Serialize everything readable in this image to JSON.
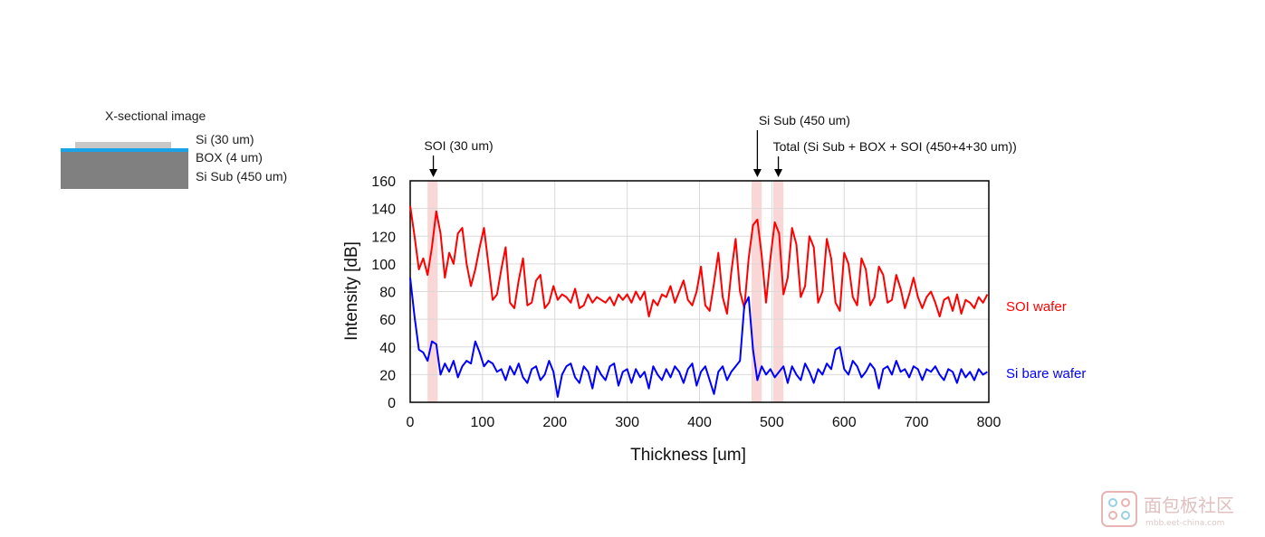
{
  "xsection": {
    "title": "X-sectional image",
    "layers": [
      {
        "label": "Si (30 um)",
        "color": "#c8c8c8"
      },
      {
        "label": "BOX (4 um)",
        "color": "#1aa3e8"
      },
      {
        "label": "Si Sub (450 um)",
        "color": "#808080"
      }
    ]
  },
  "annotations": [
    {
      "label": "SOI (30 um)",
      "x": 32
    },
    {
      "label": "Si Sub (450 um)",
      "x": 480
    },
    {
      "label": "Total (Si Sub + BOX + SOI (450+4+30 um))",
      "x": 509
    }
  ],
  "watermark": {
    "text": "面包板社区",
    "sub": "mbb.eet-china.com"
  },
  "chart_data": {
    "type": "line",
    "xlabel": "Thickness [um]",
    "ylabel": "Intensity [dB]",
    "xlim": [
      0,
      800
    ],
    "ylim": [
      0,
      160
    ],
    "xticks": [
      0,
      100,
      200,
      300,
      400,
      500,
      600,
      700,
      800
    ],
    "yticks": [
      0,
      20,
      40,
      60,
      80,
      100,
      120,
      140,
      160
    ],
    "grid": true,
    "highlight_bands": [
      [
        24,
        38
      ],
      [
        472,
        486
      ],
      [
        502,
        516
      ]
    ],
    "highlight_color": "#f7c9c9",
    "series": [
      {
        "name": "SOI wafer",
        "color": "#ff0000",
        "x": [
          0,
          6,
          12,
          18,
          24,
          30,
          36,
          42,
          48,
          54,
          60,
          66,
          72,
          78,
          84,
          90,
          96,
          102,
          108,
          114,
          120,
          126,
          132,
          138,
          144,
          150,
          156,
          162,
          168,
          174,
          180,
          186,
          192,
          198,
          204,
          210,
          216,
          222,
          228,
          234,
          240,
          246,
          252,
          258,
          264,
          270,
          276,
          282,
          288,
          294,
          300,
          306,
          312,
          318,
          324,
          330,
          336,
          342,
          348,
          354,
          360,
          366,
          372,
          378,
          384,
          390,
          396,
          402,
          408,
          414,
          420,
          426,
          432,
          438,
          444,
          450,
          456,
          462,
          468,
          474,
          480,
          486,
          492,
          498,
          504,
          510,
          516,
          522,
          528,
          534,
          540,
          546,
          552,
          558,
          564,
          570,
          576,
          582,
          588,
          594,
          600,
          606,
          612,
          618,
          624,
          630,
          636,
          642,
          648,
          654,
          660,
          666,
          672,
          678,
          684,
          690,
          696,
          702,
          708,
          714,
          720,
          726,
          732,
          738,
          744,
          750,
          756,
          762,
          768,
          774,
          780,
          786,
          792,
          798
        ],
        "values": [
          142,
          120,
          96,
          104,
          92,
          112,
          138,
          122,
          90,
          108,
          100,
          122,
          126,
          100,
          84,
          96,
          112,
          126,
          100,
          74,
          78,
          96,
          112,
          72,
          68,
          88,
          104,
          70,
          72,
          88,
          92,
          68,
          72,
          84,
          74,
          78,
          76,
          72,
          82,
          68,
          70,
          78,
          72,
          76,
          74,
          72,
          76,
          70,
          78,
          74,
          78,
          72,
          80,
          74,
          80,
          62,
          74,
          70,
          78,
          76,
          84,
          72,
          80,
          88,
          74,
          70,
          80,
          98,
          70,
          66,
          86,
          108,
          76,
          64,
          94,
          118,
          80,
          68,
          104,
          128,
          132,
          106,
          72,
          104,
          130,
          122,
          78,
          90,
          126,
          114,
          76,
          84,
          120,
          112,
          72,
          80,
          118,
          104,
          72,
          66,
          108,
          100,
          76,
          70,
          104,
          96,
          70,
          76,
          98,
          92,
          72,
          74,
          92,
          82,
          68,
          78,
          90,
          76,
          68,
          76,
          80,
          72,
          62,
          74,
          76,
          66,
          78,
          64,
          74,
          72,
          68,
          76,
          72,
          78
        ]
      },
      {
        "name": "Si bare wafer",
        "color": "#0000ff",
        "x": [
          0,
          6,
          12,
          18,
          24,
          30,
          36,
          42,
          48,
          54,
          60,
          66,
          72,
          78,
          84,
          90,
          96,
          102,
          108,
          114,
          120,
          126,
          132,
          138,
          144,
          150,
          156,
          162,
          168,
          174,
          180,
          186,
          192,
          198,
          204,
          210,
          216,
          222,
          228,
          234,
          240,
          246,
          252,
          258,
          264,
          270,
          276,
          282,
          288,
          294,
          300,
          306,
          312,
          318,
          324,
          330,
          336,
          342,
          348,
          354,
          360,
          366,
          372,
          378,
          384,
          390,
          396,
          402,
          408,
          414,
          420,
          426,
          432,
          438,
          444,
          450,
          456,
          462,
          468,
          474,
          480,
          486,
          492,
          498,
          504,
          510,
          516,
          522,
          528,
          534,
          540,
          546,
          552,
          558,
          564,
          570,
          576,
          582,
          588,
          594,
          600,
          606,
          612,
          618,
          624,
          630,
          636,
          642,
          648,
          654,
          660,
          666,
          672,
          678,
          684,
          690,
          696,
          702,
          708,
          714,
          720,
          726,
          732,
          738,
          744,
          750,
          756,
          762,
          768,
          774,
          780,
          786,
          792,
          798
        ],
        "values": [
          90,
          62,
          38,
          36,
          30,
          44,
          42,
          20,
          28,
          22,
          30,
          18,
          26,
          30,
          28,
          44,
          36,
          26,
          30,
          28,
          22,
          24,
          16,
          26,
          20,
          28,
          18,
          14,
          24,
          26,
          16,
          20,
          30,
          22,
          4,
          20,
          26,
          28,
          18,
          14,
          26,
          22,
          10,
          26,
          20,
          16,
          26,
          28,
          12,
          22,
          24,
          14,
          24,
          18,
          22,
          10,
          26,
          20,
          16,
          24,
          18,
          26,
          22,
          14,
          24,
          28,
          12,
          22,
          26,
          16,
          6,
          22,
          26,
          16,
          22,
          26,
          30,
          70,
          76,
          38,
          16,
          26,
          20,
          24,
          18,
          22,
          26,
          14,
          26,
          20,
          16,
          28,
          22,
          14,
          24,
          20,
          28,
          24,
          38,
          40,
          24,
          20,
          30,
          26,
          18,
          22,
          28,
          24,
          10,
          24,
          26,
          20,
          30,
          22,
          24,
          18,
          26,
          24,
          16,
          24,
          22,
          26,
          20,
          16,
          24,
          22,
          14,
          24,
          18,
          22,
          16,
          24,
          20,
          22
        ]
      }
    ]
  }
}
